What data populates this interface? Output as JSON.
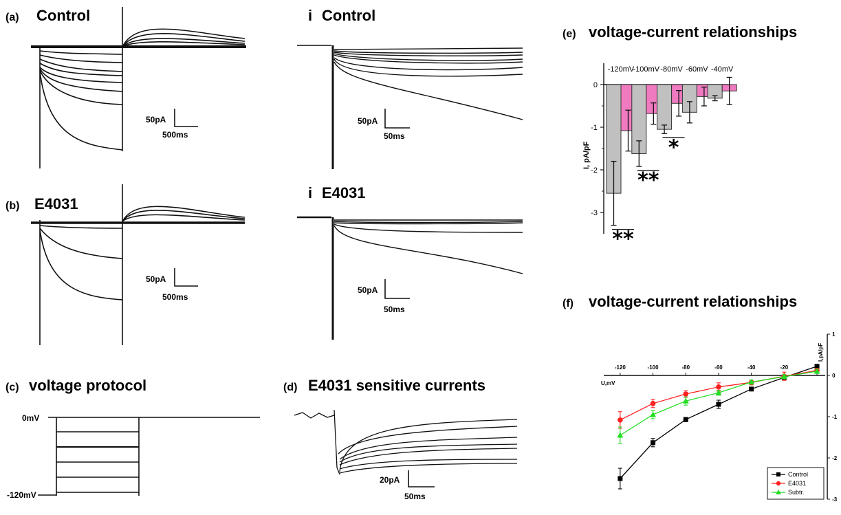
{
  "panels": {
    "a": {
      "label": "(a)",
      "title": "Control",
      "scale_y": "50pA",
      "scale_x": "500ms"
    },
    "ai": {
      "label": "i",
      "title": "Control",
      "scale_y": "50pA",
      "scale_x": "50ms"
    },
    "b": {
      "label": "(b)",
      "title": "E4031",
      "scale_y": "50pA",
      "scale_x": "500ms"
    },
    "bi": {
      "label": "i",
      "title": "E4031",
      "scale_y": "50pA",
      "scale_x": "50ms"
    },
    "c": {
      "label": "(c)",
      "title": "voltage protocol",
      "v_top": "0mV",
      "v_bottom": "-120mV"
    },
    "d": {
      "label": "(d)",
      "title": "E4031 sensitive currents",
      "scale_y": "20pA",
      "scale_x": "50ms"
    },
    "e": {
      "label": "(e)",
      "title": "voltage-current relationships"
    },
    "f": {
      "label": "(f)",
      "title": "voltage-current relationships"
    }
  },
  "colors": {
    "control_bar": "#c0c0c0",
    "e4031_bar": "#f07ac0",
    "control_line": "#000000",
    "e4031_line": "#ff2020",
    "subtr_line": "#22dd22"
  },
  "chart_data": [
    {
      "type": "bar",
      "panel": "e",
      "title": "voltage-current relationships",
      "categories": [
        "-120mV",
        "-100mV",
        "-80mV",
        "-60mV",
        "-40mV"
      ],
      "series": [
        {
          "values": [
            -2.55,
            -1.62,
            -1.05,
            -0.65,
            -0.32
          ],
          "errors": [
            0.75,
            0.3,
            0.1,
            0.25,
            0.06
          ]
        },
        {
          "values": [
            -1.08,
            -0.68,
            -0.44,
            -0.28,
            -0.15
          ],
          "errors": [
            0.48,
            0.25,
            0.3,
            0.22,
            0.32
          ]
        }
      ],
      "ylabel": "I, pA/pF",
      "ylim": [
        -3.5,
        0.5
      ],
      "yticks": [
        0,
        -1,
        -2,
        -3
      ],
      "significance": [
        "**",
        "**",
        "*",
        "",
        ""
      ]
    },
    {
      "type": "line",
      "panel": "f",
      "title": "voltage-current relationships",
      "xlabel": "U,mV",
      "ylabel": "I,pA/pF",
      "x": [
        -120,
        -100,
        -80,
        -60,
        -40,
        -20,
        0
      ],
      "xlim": [
        -130,
        5
      ],
      "ylim": [
        -3,
        1
      ],
      "xticks": [
        -120,
        -100,
        -80,
        -60,
        -40,
        -20,
        0
      ],
      "yticks": [
        1,
        0,
        -1,
        -2,
        -3
      ],
      "legend_position": "bottom-right",
      "series": [
        {
          "name": "Control",
          "values": [
            -2.5,
            -1.63,
            -1.07,
            -0.7,
            -0.33,
            -0.05,
            0.22
          ],
          "errors": [
            0.25,
            0.1,
            0.05,
            0.1,
            0.04,
            0.05,
            0.04
          ]
        },
        {
          "name": "E4031",
          "values": [
            -1.08,
            -0.68,
            -0.45,
            -0.28,
            -0.17,
            -0.02,
            0.12
          ],
          "errors": [
            0.2,
            0.1,
            0.08,
            0.1,
            0.06,
            0.1,
            0.05
          ]
        },
        {
          "name": "Subtr.",
          "values": [
            -1.45,
            -0.95,
            -0.62,
            -0.42,
            -0.16,
            -0.03,
            0.1
          ],
          "errors": [
            0.2,
            0.1,
            0.1,
            0.06,
            0.05,
            0.05,
            0.05
          ]
        }
      ]
    }
  ]
}
